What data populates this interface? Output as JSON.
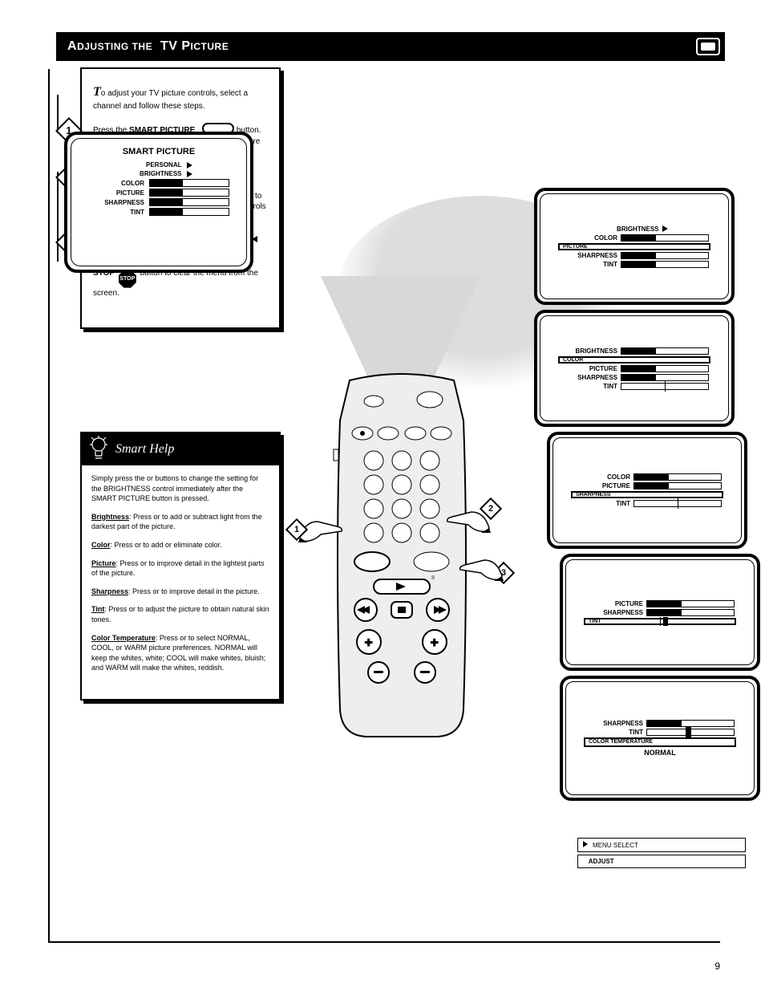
{
  "header": {
    "title_left": "A",
    "title_right": "TV P",
    "subtitle1": "DJUSTING THE",
    "subtitle2": "ICTURE",
    "page_number": "9"
  },
  "card": {
    "intro_lead": "T",
    "intro_text": "o adjust your TV picture controls, select a channel and follow these steps.",
    "smart_label": "Smart",
    "steps": [
      {
        "n": "1",
        "html": "Press the <b>SMART PICTURE</b> <span class=\"smart-btn\"></span> button. Note: This button switches between the Picture menu and the Smart Picture feature."
      },
      {
        "n": "2",
        "html": "Press the <b>PLAY <span class='play-tri'></span></b> button to see the picture adjustment controls – beginning with BRIGHTNESS. Press the <b>PLAY</b> button again to move the red highlight through the list of controls (COLOR, PICTURE, SHARPNESS, TINT)."
      },
      {
        "n": "3",
        "html": "Press the <b>FAST FORWARD <span class='ff'></span></b> or <b>REWIND <span class='rw'></span></b> buttons to adjust the selected control. Remember, when you are finished press the <b>STOP</b> <span class='stop-sign'>STOP</span> button to clear the menu from the screen."
      }
    ]
  },
  "tips": {
    "heading": "Smart Help",
    "p1_part1": "Simply press the ",
    "p1_part2": " buttons to change the setting for the BRIGHTNESS control immediately after the SMART PICTURE button is pressed.",
    "items": [
      {
        "name": "Brightness",
        "text": ": Press ",
        "text2": " to add or subtract light from the darkest part of the picture."
      },
      {
        "name": "Color",
        "text": ": Press ",
        "text2": " to add or eliminate color."
      },
      {
        "name": "Picture",
        "text": ": Press ",
        "text2": " to improve detail in the lightest parts of the picture."
      },
      {
        "name": "Sharpness",
        "text": ": Press ",
        "text2": " to improve detail in the picture."
      },
      {
        "name": "Tint",
        "text": ": Press ",
        "text2": " to adjust the picture to obtain natural skin tones."
      },
      {
        "name": "Color Temperature",
        "text": ": Press ",
        "text2": " to select NORMAL, COOL, or WARM picture preferences. NORMAL will keep the whites, white; COOL will make whites, bluish; and WARM will make the whites, reddish."
      }
    ]
  },
  "popup": {
    "title": "SMART PICTURE",
    "sub": "PERSONAL",
    "rows": [
      {
        "label": "BRIGHTNESS",
        "arrow": true
      },
      {
        "label": "COLOR",
        "fill": 42
      },
      {
        "label": "PICTURE",
        "fill": 42
      },
      {
        "label": "SHARPNESS",
        "fill": 42
      },
      {
        "label": "TINT",
        "fill": 42
      }
    ]
  },
  "mini": [
    {
      "title": "",
      "rows": [
        {
          "lab": "BRIGHTNESS",
          "arrow": true
        },
        {
          "lab": "COLOR",
          "fill": 40
        },
        {
          "lab": "PICTURE",
          "sel": true,
          "fill": 0
        },
        {
          "lab": "SHARPNESS",
          "fill": 40
        },
        {
          "lab": "TINT",
          "fill": 40
        }
      ]
    },
    {
      "rows": [
        {
          "lab": "BRIGHTNESS",
          "fill": 40
        },
        {
          "lab": "COLOR",
          "sel": true,
          "fill": 0
        },
        {
          "lab": "PICTURE",
          "fill": 40
        },
        {
          "lab": "SHARPNESS",
          "fill": 40
        },
        {
          "lab": "TINT",
          "mid": true
        }
      ]
    },
    {
      "rows": [
        {
          "lab": "COLOR",
          "fill": 40
        },
        {
          "lab": "PICTURE",
          "fill": 40
        },
        {
          "lab": "SHARPNESS",
          "sel": true,
          "fill": 0
        },
        {
          "lab": "TINT",
          "mid": true
        }
      ]
    },
    {
      "rows": [
        {
          "lab": "PICTURE",
          "fill": 40
        },
        {
          "lab": "SHARPNESS",
          "fill": 40
        },
        {
          "lab": "TINT",
          "sel": true,
          "mid": true,
          "tick": 52
        }
      ]
    },
    {
      "rows": [
        {
          "lab": "SHARPNESS",
          "fill": 40
        },
        {
          "lab": "TINT",
          "mid": true,
          "tick": 44
        },
        {
          "lab": "COLOR TEMPERATURE",
          "sel": true,
          "full": true
        },
        {
          "lab": "NORMAL",
          "noborder": true
        }
      ]
    }
  ],
  "legend": [
    {
      "text": "MENU SELECT",
      "bold": false
    },
    {
      "text": "ADJUST",
      "bold": true
    }
  ],
  "colors": {
    "bg": "#ffffff",
    "ink": "#000000",
    "shade": "#dddddd"
  }
}
